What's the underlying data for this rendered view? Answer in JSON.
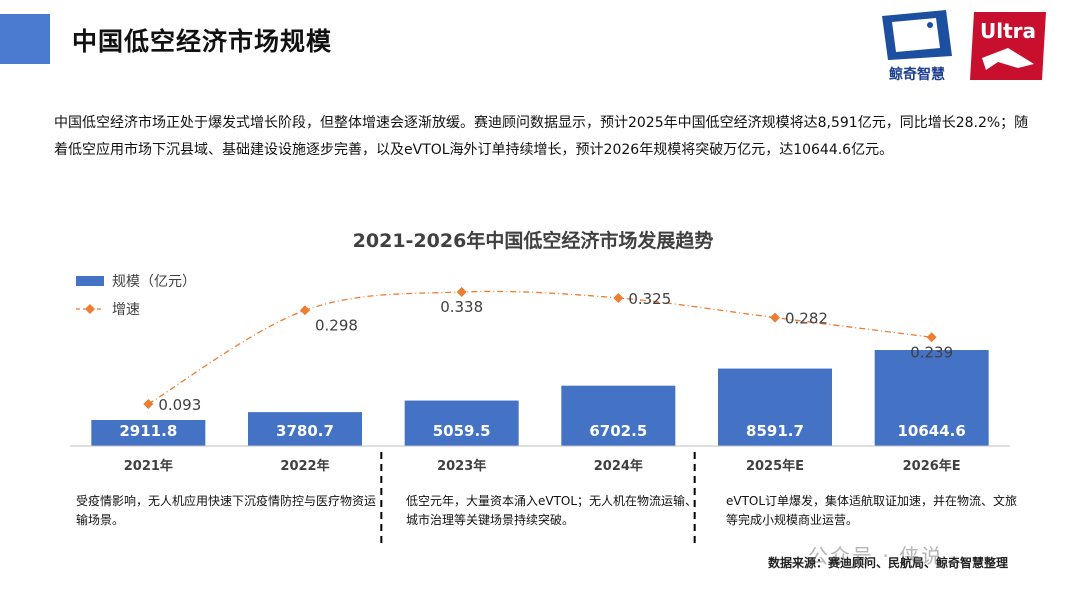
{
  "page": {
    "title": "中国低空经济市场规模",
    "intro": "中国低空经济市场正处于爆发式增长阶段，但整体增速会逐渐放缓。赛迪顾问数据显示，预计2025年中国低空经济规模将达8,591亿元，同比增长28.2%；随着低空应用市场下沉县域、基础建设设施逐步完善，以及eVTOL海外订单持续增长，预计2026年规模将突破万亿元，达10644.6亿元。",
    "logo_brand": "鲸奇智慧",
    "logo_ultra": "Ultra",
    "accent_color": "#4a7bd0",
    "notes": [
      "受疫情影响，无人机应用快速下沉疫情防控与医疗物资运输场景。",
      "低空元年，大量资本涌入eVTOL；无人机在物流运输、城市治理等关键场景持续突破。",
      "eVTOL订单爆发，集体适航取证加速，并在物流、文旅等完成小规模商业运营。"
    ],
    "source": "数据来源：赛迪顾问、民航局、鲸奇智慧整理",
    "watermark": "公众号 · 侠说"
  },
  "chart_data": {
    "type": "bar",
    "title": "2021-2026年中国低空经济市场发展趋势",
    "categories": [
      "2021年",
      "2022年",
      "2023年",
      "2024年",
      "2025年E",
      "2026年E"
    ],
    "series": [
      {
        "name": "规模（亿元）",
        "type": "bar",
        "color": "#4472c4",
        "values": [
          2911.8,
          3780.7,
          5059.5,
          6702.5,
          8591.7,
          10644.6
        ]
      },
      {
        "name": "增速",
        "type": "line",
        "color": "#ed7d31",
        "values": [
          0.093,
          0.298,
          0.338,
          0.325,
          0.282,
          0.239
        ]
      }
    ],
    "legend": "top-left",
    "grid": false
  }
}
